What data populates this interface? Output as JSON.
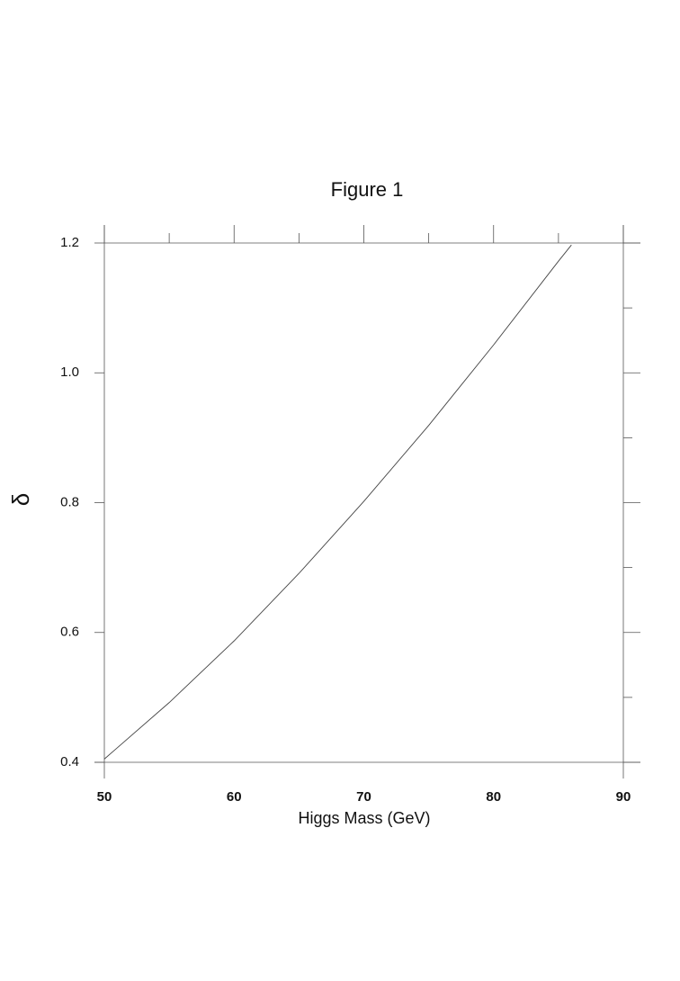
{
  "chart_data": {
    "type": "line",
    "title": "Figure 1",
    "x_label": "Higgs Mass (GeV)",
    "y_label": "δ",
    "x": [
      50,
      55,
      60,
      65,
      70,
      75,
      80,
      85,
      86
    ],
    "series": [
      {
        "values": [
          0.405,
          0.492,
          0.587,
          0.691,
          0.802,
          0.919,
          1.043,
          1.172,
          1.197
        ],
        "color": "#444444"
      }
    ],
    "xlim": [
      50,
      90
    ],
    "xticks": [
      50,
      60,
      70,
      80,
      90
    ],
    "xminorticks": [
      55,
      65,
      75,
      85
    ],
    "ylim": [
      0.4,
      1.2
    ],
    "yticks": [
      0.4,
      0.6,
      0.8,
      {
        "value": 1.0,
        "label": "1.0"
      },
      1.2
    ],
    "yminorticks": [
      0.5,
      0.7,
      0.9,
      1.1
    ]
  }
}
